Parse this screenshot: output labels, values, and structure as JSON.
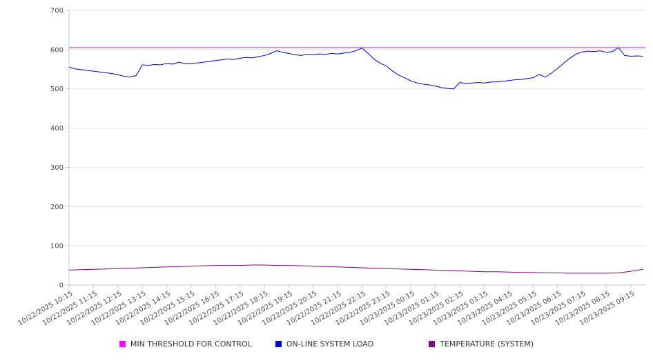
{
  "chart_data": {
    "type": "line",
    "title": "",
    "xlabel": "",
    "ylabel": "",
    "x_range": [
      0,
      23.6
    ],
    "ylim": [
      0,
      700
    ],
    "y_ticks": [
      0,
      100,
      200,
      300,
      400,
      500,
      600,
      700
    ],
    "grid": "horizontal",
    "legend_position": "bottom",
    "x_tick_labels": [
      "10/22/2025 10:15",
      "10/22/2025 11:15",
      "10/22/2025 12:15",
      "10/22/2025 13:15",
      "10/22/2025 14:15",
      "10/22/2025 15:15",
      "10/22/2025 16:15",
      "10/22/2025 17:15",
      "10/22/2025 18:15",
      "10/22/2025 19:15",
      "10/22/2025 20:15",
      "10/22/2025 21:15",
      "10/22/2025 22:15",
      "10/22/2025 23:15",
      "10/23/2025 00:15",
      "10/23/2025 01:15",
      "10/23/2025 02:15",
      "10/23/2025 03:15",
      "10/23/2025 04:15",
      "10/23/2025 05:15",
      "10/23/2025 06:15",
      "10/23/2025 07:15",
      "10/23/2025 08:15",
      "10/23/2025 09:15"
    ],
    "series": [
      {
        "name": "MIN THRESHOLD FOR CONTROL",
        "color": "#ff00ff",
        "x_start": 0,
        "x_step": 23.6,
        "values": [
          605,
          605
        ]
      },
      {
        "name": "ON-LINE SYSTEM LOAD",
        "color": "#0000cd",
        "x_start": 0,
        "x_step": 0.25,
        "values": [
          555,
          551,
          549,
          547,
          545,
          543,
          541,
          539,
          536,
          532,
          530,
          534,
          561,
          560,
          562,
          561,
          565,
          563,
          568,
          564,
          565,
          566,
          568,
          570,
          572,
          574,
          576,
          575,
          578,
          580,
          579,
          582,
          585,
          590,
          597,
          593,
          590,
          587,
          585,
          588,
          587,
          589,
          588,
          590,
          589,
          591,
          593,
          597,
          604,
          590,
          575,
          565,
          558,
          545,
          535,
          528,
          520,
          515,
          512,
          510,
          507,
          503,
          501,
          500,
          516,
          514,
          515,
          516,
          515,
          517,
          518,
          519,
          521,
          523,
          524,
          526,
          528,
          537,
          530,
          540,
          552,
          565,
          578,
          588,
          594,
          596,
          595,
          597,
          593,
          595,
          605,
          585,
          583,
          584,
          583
        ]
      },
      {
        "name": "TEMPERATURE (SYSTEM)",
        "color": "#800080",
        "x_start": 0,
        "x_step": 0.5,
        "values": [
          38,
          39,
          40,
          41,
          42,
          43,
          44,
          45,
          46,
          47,
          48,
          49,
          50,
          50,
          50,
          51,
          51,
          50,
          50,
          49,
          48,
          47,
          46,
          45,
          44,
          43,
          42,
          41,
          40,
          39,
          38,
          37,
          36,
          35,
          34,
          34,
          33,
          32,
          32,
          31,
          31,
          30,
          30,
          30,
          30,
          31,
          35,
          40
        ]
      }
    ]
  }
}
